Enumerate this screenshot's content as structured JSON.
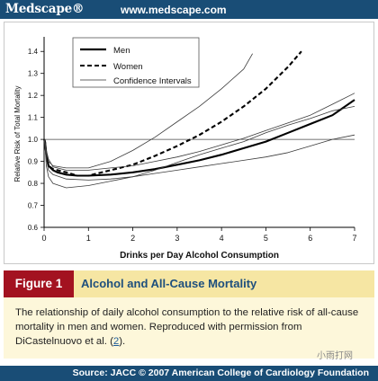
{
  "header": {
    "logo": "Medscape®",
    "url": "www.medscape.com"
  },
  "caption": {
    "figure_label": "Figure 1",
    "title": "Alcohol and All-Cause Mortality",
    "text_before": "The relationship of daily alcohol consumption to the relative risk of all-cause mortality in men and women. Reproduced with permission from DiCastelnuovo et al. (",
    "ref": "2",
    "text_after": ")."
  },
  "footer": {
    "source": "Source: JACC © 2007 American College of Cardiology Foundation"
  },
  "watermark": "小雨打网",
  "colors": {
    "brand_bar": "#194d76",
    "figure_label_bg": "#a31220",
    "caption_title_bg": "#f6e6a3",
    "caption_body_bg": "#fdf7da",
    "caption_title_text": "#1e4f7d"
  },
  "chart_data": {
    "type": "line",
    "xlabel": "Drinks per Day Alcohol Consumption",
    "ylabel": "Relative Risk of Total Mortality",
    "xlim": [
      0,
      7
    ],
    "ylim": [
      0.6,
      1.45
    ],
    "xticks": [
      "0",
      "1",
      "2",
      "3",
      "4",
      "5",
      "6",
      "7"
    ],
    "yticks": [
      "0.6",
      "0.7",
      "0.8",
      "0.9",
      "1.0",
      "1.1",
      "1.2",
      "1.3",
      "1.4"
    ],
    "reference_line": 1.0,
    "grid": false,
    "legend_position": "top-left",
    "legend": [
      "Men",
      "Women",
      "Confidence Intervals"
    ],
    "series": [
      {
        "name": "Men",
        "style": "solid",
        "width": "thick",
        "x": [
          0,
          0.02,
          0.05,
          0.1,
          0.2,
          0.3,
          0.5,
          0.75,
          1,
          1.5,
          2,
          2.5,
          3,
          3.5,
          4,
          4.5,
          5,
          5.5,
          6,
          6.5,
          7
        ],
        "y": [
          1.0,
          0.99,
          0.93,
          0.88,
          0.86,
          0.85,
          0.84,
          0.835,
          0.835,
          0.84,
          0.85,
          0.865,
          0.885,
          0.905,
          0.93,
          0.96,
          0.99,
          1.03,
          1.07,
          1.11,
          1.18
        ]
      },
      {
        "name": "Women",
        "style": "dashed",
        "width": "thick",
        "x": [
          0,
          0.02,
          0.05,
          0.1,
          0.2,
          0.3,
          0.5,
          0.75,
          1,
          1.5,
          2,
          2.5,
          3,
          3.5,
          4,
          4.5,
          5,
          5.5,
          5.8
        ],
        "y": [
          1.0,
          0.99,
          0.93,
          0.88,
          0.865,
          0.86,
          0.85,
          0.835,
          0.835,
          0.86,
          0.885,
          0.925,
          0.97,
          1.02,
          1.08,
          1.15,
          1.23,
          1.33,
          1.4
        ]
      },
      {
        "name": "Men CI upper",
        "style": "solid",
        "width": "thin",
        "x": [
          0,
          0.02,
          0.05,
          0.1,
          0.2,
          0.5,
          1,
          1.5,
          2,
          2.5,
          3,
          3.5,
          4,
          4.5,
          5,
          5.5,
          6,
          6.5,
          7
        ],
        "y": [
          1.0,
          0.99,
          0.95,
          0.91,
          0.875,
          0.86,
          0.86,
          0.87,
          0.88,
          0.9,
          0.92,
          0.945,
          0.975,
          1.005,
          1.04,
          1.075,
          1.11,
          1.16,
          1.21
        ]
      },
      {
        "name": "Men CI lower",
        "style": "solid",
        "width": "thin",
        "x": [
          0,
          0.02,
          0.05,
          0.1,
          0.2,
          0.5,
          1,
          1.5,
          2,
          2.5,
          3,
          3.5,
          4,
          4.5,
          5,
          5.5,
          6,
          6.5,
          7
        ],
        "y": [
          1.0,
          0.98,
          0.91,
          0.86,
          0.84,
          0.82,
          0.815,
          0.82,
          0.83,
          0.845,
          0.86,
          0.875,
          0.89,
          0.905,
          0.92,
          0.94,
          0.97,
          1.0,
          1.02
        ]
      },
      {
        "name": "Women CI upper",
        "style": "solid",
        "width": "thin",
        "x": [
          0,
          0.02,
          0.05,
          0.1,
          0.2,
          0.5,
          1,
          1.5,
          2,
          2.5,
          3,
          3.5,
          4,
          4.5,
          4.7
        ],
        "y": [
          1.0,
          0.99,
          0.94,
          0.9,
          0.88,
          0.87,
          0.87,
          0.9,
          0.95,
          1.01,
          1.08,
          1.15,
          1.23,
          1.32,
          1.39
        ]
      },
      {
        "name": "Women CI lower",
        "style": "solid",
        "width": "thin",
        "x": [
          0,
          0.02,
          0.05,
          0.1,
          0.2,
          0.5,
          1,
          1.5,
          2,
          2.5,
          3,
          3.5,
          4,
          4.5,
          5,
          5.5,
          6,
          6.5,
          7
        ],
        "y": [
          1.0,
          0.97,
          0.88,
          0.83,
          0.8,
          0.78,
          0.79,
          0.81,
          0.83,
          0.86,
          0.895,
          0.93,
          0.96,
          0.99,
          1.03,
          1.065,
          1.095,
          1.13,
          1.15
        ]
      }
    ]
  }
}
